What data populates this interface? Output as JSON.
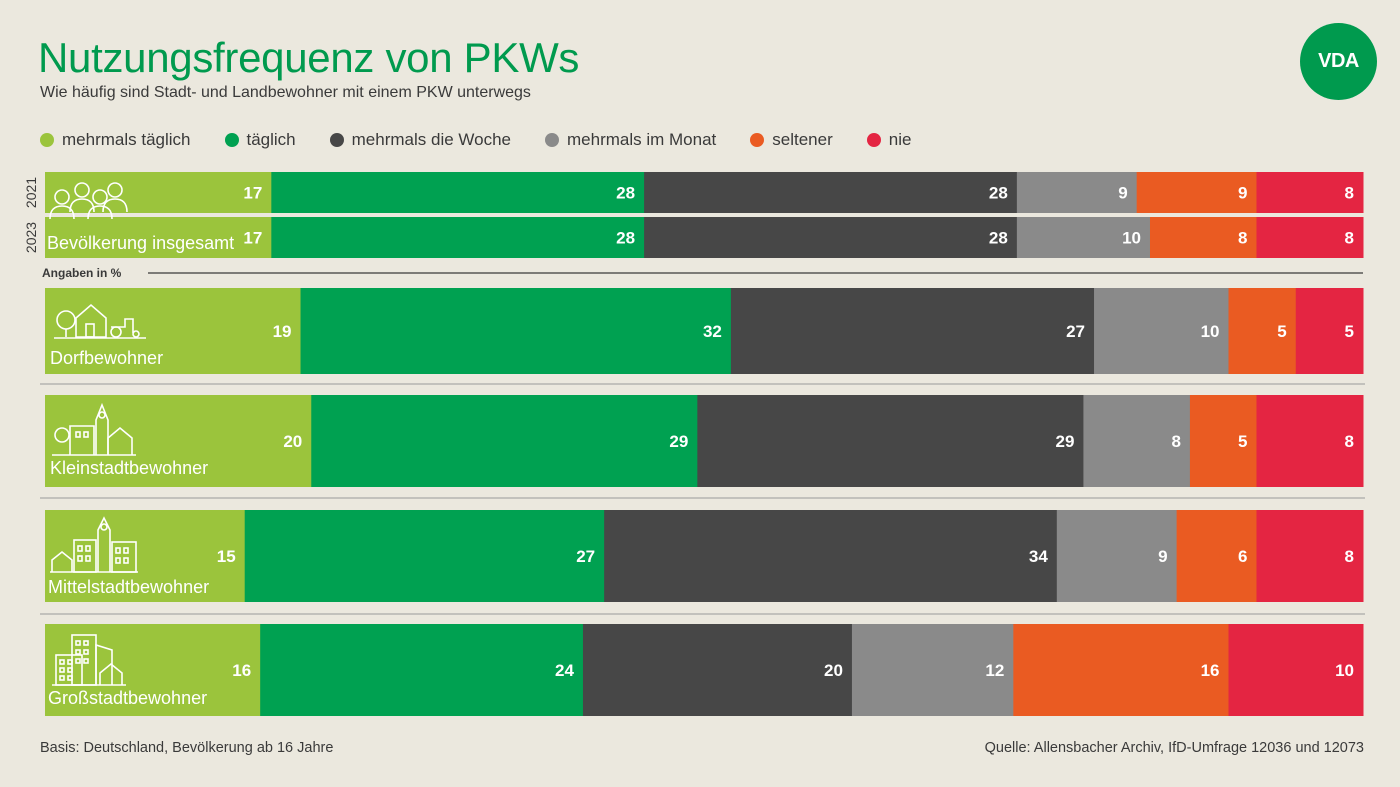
{
  "title": "Nutzungsfrequenz von PKWs",
  "subtitle": "Wie häufig sind Stadt- und Landbewohner mit einem PKW unterwegs",
  "logo_text": "VDA",
  "footer": {
    "basis": "Basis: Deutschland, Bevölkerung ab 16 Jahre",
    "source": "Quelle: Allensbacher Archiv, IfD-Umfrage 12036 und 12073"
  },
  "chart_data": {
    "type": "bar",
    "orientation": "horizontal-stacked-percent",
    "unit_note": "Angaben in %",
    "legend": [
      {
        "name": "mehrmals täglich",
        "color": "#9bc43c"
      },
      {
        "name": "täglich",
        "color": "#00a151"
      },
      {
        "name": "mehrmals die Woche",
        "color": "#474747"
      },
      {
        "name": "mehrmals im Monat",
        "color": "#8a8a8a"
      },
      {
        "name": "seltener",
        "color": "#ea5b22"
      },
      {
        "name": "nie",
        "color": "#e42542"
      }
    ],
    "groups": [
      {
        "label": "Bevölkerung insgesamt",
        "icon": "people-icon",
        "rows": [
          {
            "year": "2021",
            "values": [
              17,
              28,
              28,
              9,
              9,
              8
            ]
          },
          {
            "year": "2023",
            "values": [
              17,
              28,
              28,
              10,
              8,
              8
            ]
          }
        ]
      },
      {
        "label": "Dorfbewohner",
        "icon": "village-icon",
        "rows": [
          {
            "values": [
              19,
              32,
              27,
              10,
              5,
              5
            ]
          }
        ]
      },
      {
        "label": "Kleinstadtbewohner",
        "icon": "small-town-icon",
        "rows": [
          {
            "values": [
              20,
              29,
              29,
              8,
              5,
              8
            ]
          }
        ]
      },
      {
        "label": "Mittelstadtbewohner",
        "icon": "medium-town-icon",
        "rows": [
          {
            "values": [
              15,
              27,
              34,
              9,
              6,
              8
            ]
          }
        ]
      },
      {
        "label": "Großstadtbewohner",
        "icon": "city-icon",
        "rows": [
          {
            "values": [
              16,
              24,
              20,
              12,
              16,
              10
            ]
          }
        ]
      }
    ]
  }
}
